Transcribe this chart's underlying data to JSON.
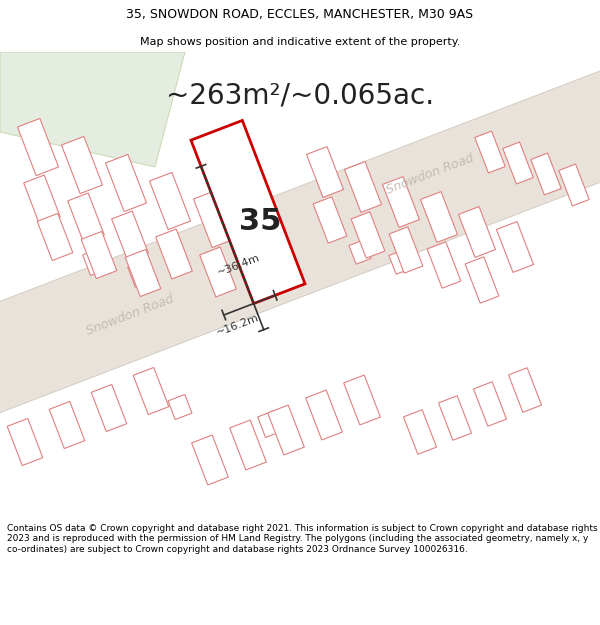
{
  "title_line1": "35, SNOWDON ROAD, ECCLES, MANCHESTER, M30 9AS",
  "title_line2": "Map shows position and indicative extent of the property.",
  "area_text": "~263m²/~0.065ac.",
  "label_35": "35",
  "dim_length": "~36.4m",
  "dim_width": "~16.2m",
  "road_label1": "Snowdon Road",
  "road_label2": "Snowdon Road",
  "footer_text": "Contains OS data © Crown copyright and database right 2021. This information is subject to Crown copyright and database rights 2023 and is reproduced with the permission of HM Land Registry. The polygons (including the associated geometry, namely x, y co-ordinates) are subject to Crown copyright and database rights 2023 Ordnance Survey 100026316.",
  "map_bg": "#f2eeea",
  "road_fill": "#e8e2da",
  "road_edge": "#d0c8bc",
  "building_fill": "#ffffff",
  "building_stroke": "#e08080",
  "building_stroke_lw": 0.8,
  "property_fill": "#ffffff",
  "property_stroke": "#cc0000",
  "property_stroke_lw": 2.0,
  "green_fill": "#e4ede0",
  "green_edge": "#c8d8b0",
  "dim_color": "#333333",
  "road_text_color": "#c0b8b0",
  "area_fontsize": 20,
  "label35_fontsize": 22,
  "dim_fontsize": 8,
  "header1_fontsize": 9,
  "header2_fontsize": 8,
  "footer_fontsize": 6.5
}
